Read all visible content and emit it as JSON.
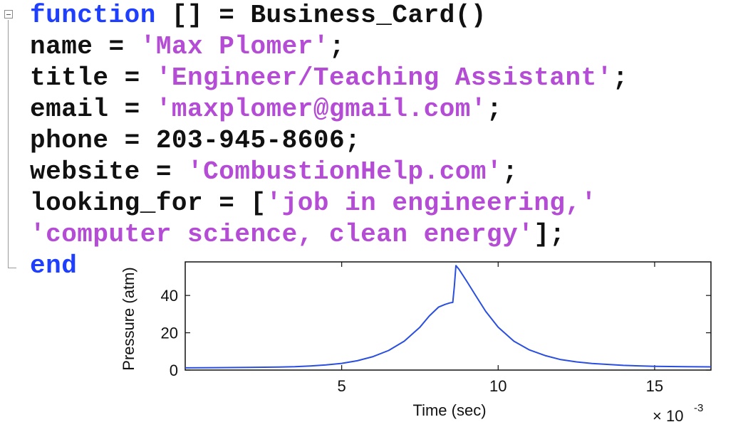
{
  "code": {
    "lines": [
      [
        {
          "t": "function",
          "c": "kw"
        },
        {
          "t": " [] = Business_Card()",
          "c": "punc"
        }
      ],
      [
        {
          "t": "name = ",
          "c": "punc"
        },
        {
          "t": "'Max Plomer'",
          "c": "str"
        },
        {
          "t": ";",
          "c": "punc"
        }
      ],
      [
        {
          "t": "title = ",
          "c": "punc"
        },
        {
          "t": "'Engineer/Teaching Assistant'",
          "c": "str"
        },
        {
          "t": ";",
          "c": "punc"
        }
      ],
      [
        {
          "t": "email = ",
          "c": "punc"
        },
        {
          "t": "'maxplomer@gmail.com'",
          "c": "str"
        },
        {
          "t": ";",
          "c": "punc"
        }
      ],
      [
        {
          "t": "phone = 203-945-8606;",
          "c": "punc"
        }
      ],
      [
        {
          "t": "website = ",
          "c": "punc"
        },
        {
          "t": "'CombustionHelp.com'",
          "c": "str"
        },
        {
          "t": ";",
          "c": "punc"
        }
      ],
      [
        {
          "t": "looking_for = [",
          "c": "punc"
        },
        {
          "t": "'job in engineering,'",
          "c": "str"
        }
      ],
      [
        {
          "t": "'computer science, clean energy'",
          "c": "str"
        },
        {
          "t": "];",
          "c": "punc"
        }
      ],
      [
        {
          "t": "end",
          "c": "kw"
        }
      ]
    ],
    "colors": {
      "keyword": "#1f3fff",
      "string": "#b54cd6",
      "text": "#111111"
    }
  },
  "chart_data": {
    "type": "line",
    "xlabel": "Time (sec)",
    "ylabel": "Pressure (atm)",
    "x_multiplier_label": "× 10",
    "x_multiplier_exp": "-3",
    "xlim": [
      0,
      16.8
    ],
    "ylim": [
      0,
      58
    ],
    "xticks": [
      5,
      10,
      15
    ],
    "yticks": [
      0,
      20,
      40
    ],
    "grid": false,
    "series": [
      {
        "color": "#2a4fe0",
        "x": [
          0,
          1,
          2,
          3,
          3.5,
          4,
          4.5,
          5,
          5.5,
          6,
          6.5,
          7,
          7.5,
          7.8,
          8.1,
          8.3,
          8.45,
          8.55,
          8.6,
          8.65,
          8.75,
          9,
          9.3,
          9.6,
          10,
          10.5,
          11,
          11.5,
          12,
          12.5,
          13,
          14,
          15,
          16,
          16.8
        ],
        "y": [
          1.2,
          1.3,
          1.4,
          1.6,
          1.8,
          2.2,
          2.8,
          3.6,
          5,
          7.2,
          10.5,
          15.5,
          23,
          29,
          33.8,
          35.2,
          36,
          36.3,
          45,
          56,
          54,
          47.5,
          39.5,
          31.5,
          23,
          15.5,
          10.8,
          7.8,
          5.6,
          4.4,
          3.5,
          2.5,
          2,
          1.8,
          1.7
        ]
      }
    ]
  }
}
